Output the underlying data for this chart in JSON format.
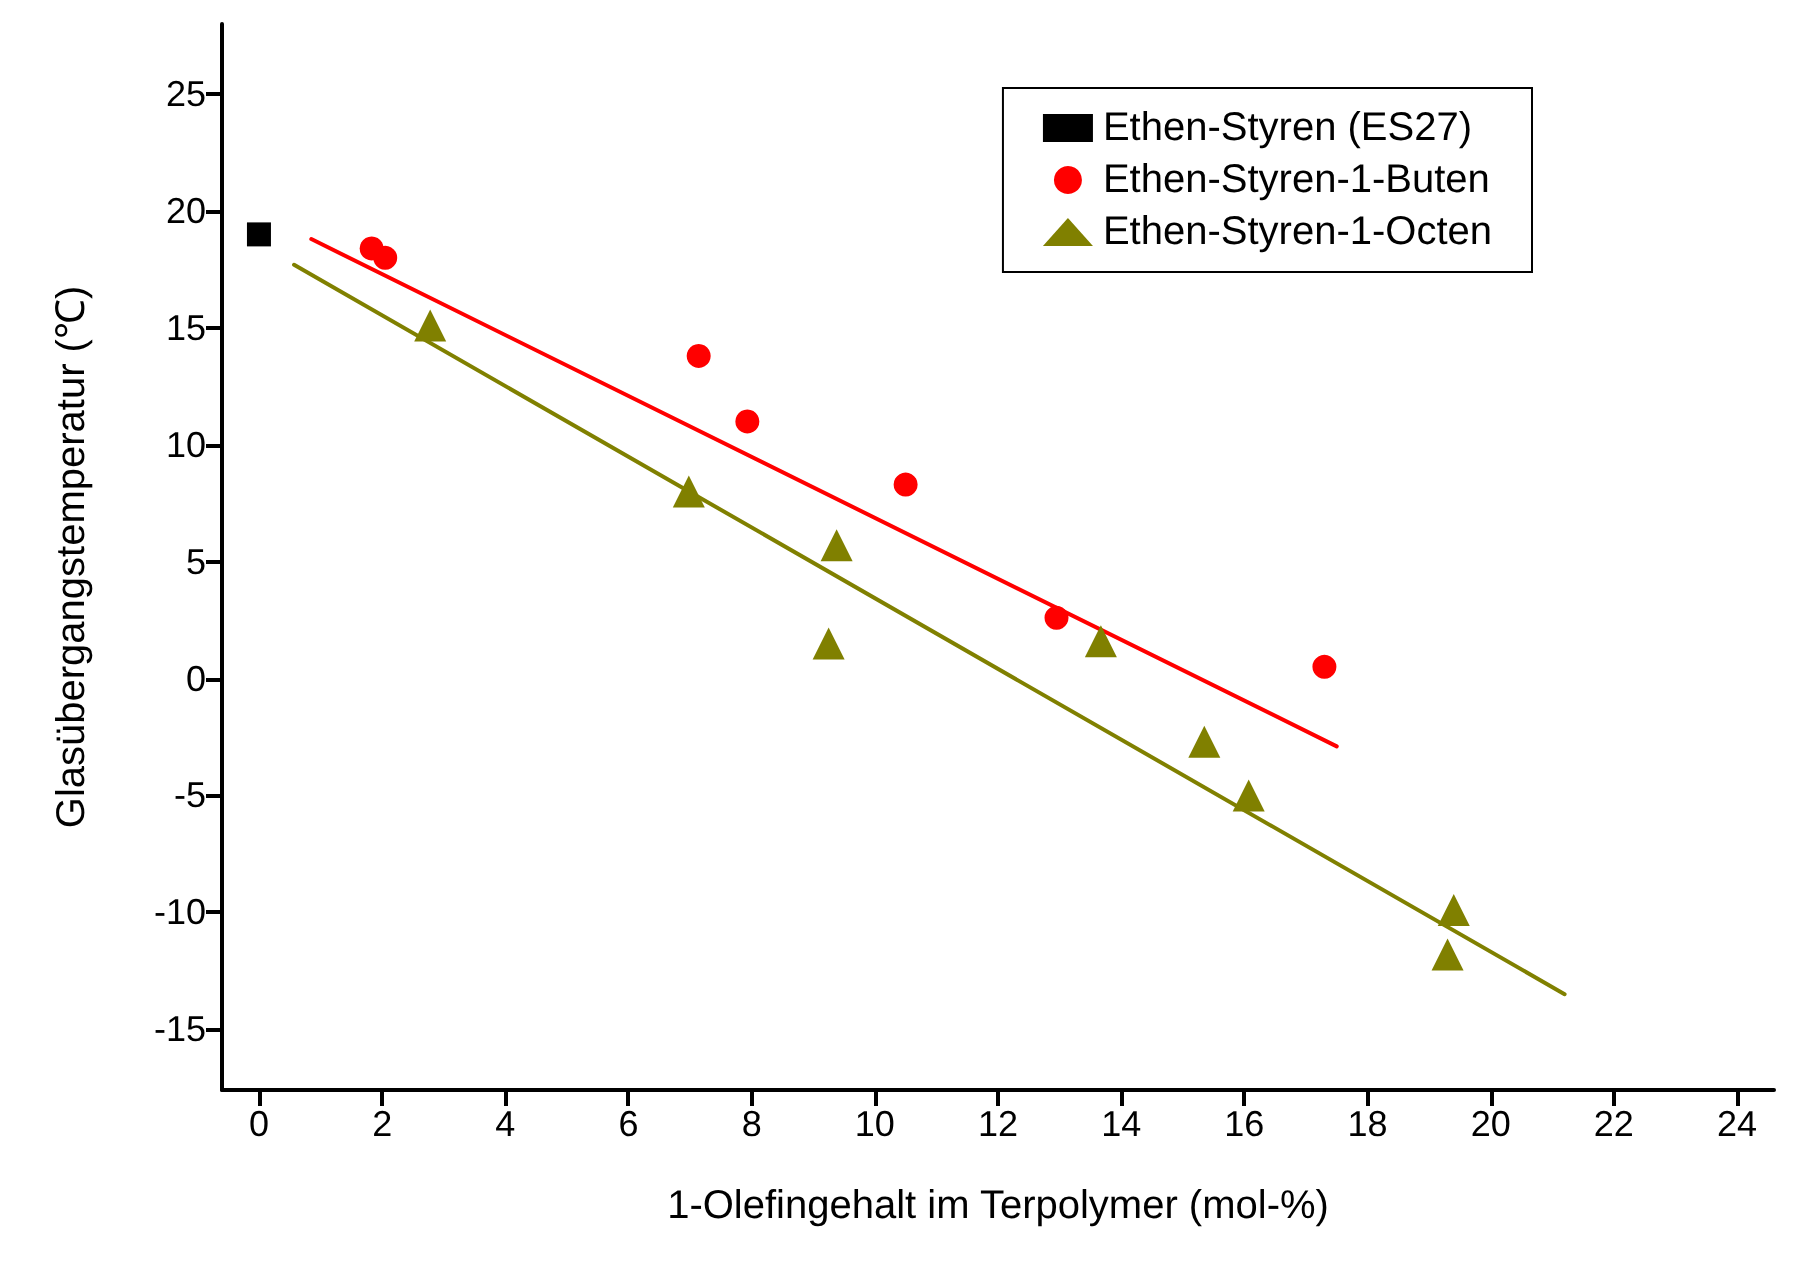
{
  "chart_data": {
    "type": "scatter",
    "xlabel": "1-Olefingehalt im Terpolymer (mol-%)",
    "ylabel": "Glasübergangstemperatur (℃)",
    "xlim": [
      -0.6,
      24.6
    ],
    "ylim": [
      -17.6,
      28
    ],
    "xticks": [
      0,
      2,
      4,
      6,
      8,
      10,
      12,
      14,
      16,
      18,
      20,
      22,
      24
    ],
    "yticks": [
      -15,
      -10,
      -5,
      0,
      5,
      10,
      15,
      20,
      25
    ],
    "grid": false,
    "legend": "top right",
    "series": [
      {
        "name": "Ethen-Styren (ES27)",
        "color": "#000000",
        "marker": "square",
        "x": [
          0
        ],
        "values": [
          19.0
        ]
      },
      {
        "name": "Ethen-Styren-1-Buten",
        "color": "#ff0000",
        "marker": "circle",
        "x": [
          1.83,
          2.05,
          7.14,
          7.93,
          10.5,
          12.95,
          17.3
        ],
        "values": [
          18.4,
          18.0,
          13.8,
          11.0,
          8.3,
          2.6,
          0.5
        ]
      },
      {
        "name": "Ethen-Styren-1-Octen",
        "color": "#808000",
        "marker": "triangle",
        "x": [
          2.78,
          6.98,
          9.38,
          9.25,
          13.67,
          15.35,
          16.07,
          19.4,
          19.3
        ],
        "values": [
          15.1,
          8.0,
          5.7,
          1.5,
          1.6,
          -2.7,
          -5.0,
          -9.9,
          -11.8
        ]
      },
      {
        "type": "line",
        "color": "#ff0000",
        "marker": "none",
        "x": [
          0.85,
          17.5
        ],
        "values": [
          18.8,
          -2.9
        ]
      },
      {
        "type": "line",
        "color": "#808000",
        "marker": "none",
        "x": [
          0.57,
          21.2
        ],
        "values": [
          17.7,
          -13.5
        ]
      }
    ]
  }
}
